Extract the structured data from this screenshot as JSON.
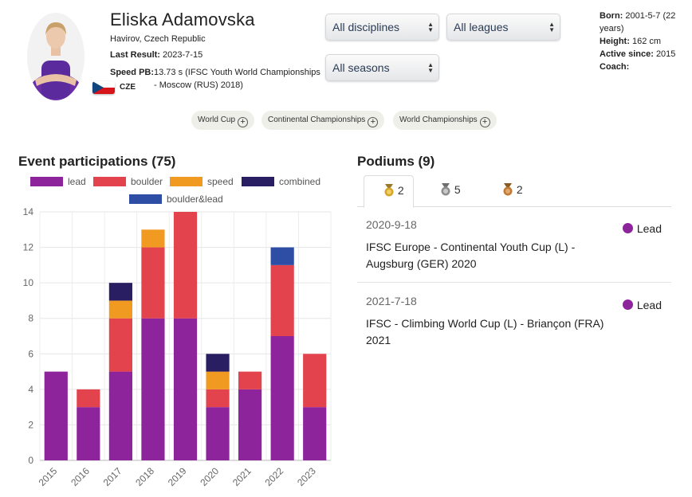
{
  "athlete": {
    "name": "Eliska Adamovska",
    "hometown": "Havirov, Czech Republic",
    "last_result_label": "Last Result:",
    "last_result_value": "2023-7-15",
    "speed_pb_label": "Speed PB:",
    "speed_pb_value": "13.73 s (IFSC Youth World Championships - Moscow (RUS) 2018)",
    "country_code": "CZE"
  },
  "filters": {
    "discipline": "All disciplines",
    "league": "All leagues",
    "season": "All seasons"
  },
  "info": {
    "born_label": "Born:",
    "born_value": "2001-5-7 (22 years)",
    "height_label": "Height:",
    "height_value": "162 cm",
    "active_label": "Active since:",
    "active_value": "2015",
    "coach_label": "Coach:",
    "coach_value": ""
  },
  "chips": [
    "World Cup",
    "Continental Championships",
    "World Championships"
  ],
  "participations": {
    "title": "Event participations (75)",
    "legend": [
      {
        "label": "lead",
        "color": "#8e249b"
      },
      {
        "label": "boulder",
        "color": "#e3434d"
      },
      {
        "label": "speed",
        "color": "#f09a22"
      },
      {
        "label": "combined",
        "color": "#2a1e62"
      },
      {
        "label": "boulder&lead",
        "color": "#2e4da5"
      }
    ]
  },
  "chart_data": {
    "type": "bar",
    "stacked": true,
    "categories": [
      "2015",
      "2016",
      "2017",
      "2018",
      "2019",
      "2020",
      "2021",
      "2022",
      "2023"
    ],
    "series": [
      {
        "name": "lead",
        "color": "#8e249b",
        "values": [
          5,
          3,
          5,
          8,
          8,
          3,
          4,
          7,
          3
        ]
      },
      {
        "name": "boulder",
        "color": "#e3434d",
        "values": [
          0,
          1,
          3,
          4,
          6,
          1,
          1,
          4,
          3
        ]
      },
      {
        "name": "speed",
        "color": "#f09a22",
        "values": [
          0,
          0,
          1,
          1,
          0,
          1,
          0,
          0,
          0
        ]
      },
      {
        "name": "combined",
        "color": "#2a1e62",
        "values": [
          0,
          0,
          1,
          0,
          0,
          1,
          0,
          0,
          0
        ]
      },
      {
        "name": "boulder&lead",
        "color": "#2e4da5",
        "values": [
          0,
          0,
          0,
          0,
          0,
          0,
          0,
          1,
          0
        ]
      }
    ],
    "ylim": [
      0,
      14
    ],
    "yticks": [
      0,
      2,
      4,
      6,
      8,
      10,
      12,
      14
    ],
    "grid": true,
    "legend": "top"
  },
  "podiums": {
    "title": "Podiums (9)",
    "tabs": [
      {
        "count": "2",
        "medal": "gold-medal-icon",
        "color": "#d4a62a"
      },
      {
        "count": "5",
        "medal": "silver-medal-icon",
        "color": "#8e8e8e"
      },
      {
        "count": "2",
        "medal": "bronze-medal-icon",
        "color": "#c07a34"
      }
    ],
    "items": [
      {
        "date": "2020-9-18",
        "title": "IFSC Europe - Continental Youth Cup (L) - Augsburg (GER) 2020",
        "discipline": "Lead"
      },
      {
        "date": "2021-7-18",
        "title": "IFSC - Climbing World Cup (L) - Briançon (FRA) 2021",
        "discipline": "Lead"
      }
    ]
  }
}
